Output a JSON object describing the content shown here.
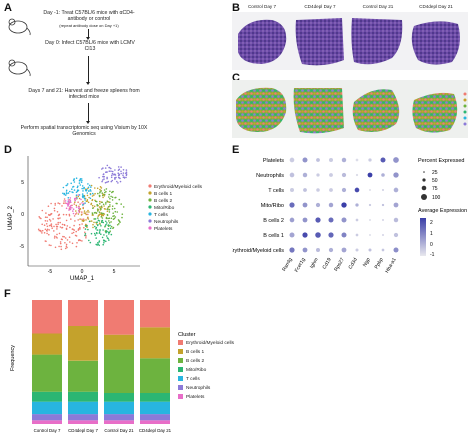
{
  "panels": {
    "A": {
      "letter": "A",
      "steps": [
        "Day -1: Treat C57BL/6 mice with αCD4-antibody or control",
        "(repeat antibody dose on Day +1)",
        "Day 0: Infect C57BL/6 mice with LCMV Cl13",
        "Days 7 and 21: Harvest and freeze spleens from infected mice",
        "Perform spatial transcriptomic seq using Visium by 10X Genomics"
      ]
    },
    "B": {
      "letter": "B",
      "titles": [
        "Control Day 7",
        "CD4depl Day 7",
        "Control Day 21",
        "CD4depl Day 21"
      ]
    },
    "C": {
      "letter": "C"
    },
    "D": {
      "letter": "D",
      "xlabel": "UMAP_1",
      "ylabel": "UMAP_2",
      "xticks": [
        "-5",
        "0",
        "5"
      ],
      "yticks": [
        "5",
        "0",
        "-5"
      ],
      "legend": [
        "Erythroid/Myeloid cells",
        "B cells 1",
        "B cells 2",
        "Mito/Ribo",
        "T cells",
        "Neutrophils",
        "Platelets"
      ]
    },
    "E": {
      "letter": "E",
      "size_legend_title": "Percent Expressed",
      "size_legend_values": [
        "25",
        "50",
        "75",
        "100"
      ],
      "color_legend_title": "Average Expression",
      "color_legend_ticks": [
        "2",
        "1",
        "0",
        "-1"
      ]
    },
    "F": {
      "letter": "F",
      "ylabel": "Frequency",
      "legend_title": "Cluster"
    }
  },
  "colors": {
    "erythroid": "#f07b72",
    "bcells1": "#c4a22c",
    "bcells2": "#6db33f",
    "mito": "#2bb673",
    "tcells": "#28b5e0",
    "neutrophils": "#8c7ad8",
    "platelets": "#e86ec8",
    "tissue_he": "#5a3f9a"
  },
  "chart_data": [
    {
      "type": "scatter",
      "name_ref": "D",
      "xlabel": "UMAP_1",
      "ylabel": "UMAP_2",
      "xticks": [
        -5,
        0,
        5
      ],
      "yticks": [
        -5,
        0,
        5
      ]
    },
    {
      "type": "scatter",
      "name_ref": "E",
      "genes": [
        "Rsrnlg",
        "Fcer1g",
        "Ighm",
        "Cd19",
        "Rps27",
        "Cd3d",
        "Ngp",
        "Ppbp",
        "Hba-a1"
      ],
      "clusters": [
        "Platelets",
        "Neutrophils",
        "T cells",
        "Mito/Ribo",
        "B cells 2",
        "B cells 1",
        "Erythroid/Myeloid cells"
      ],
      "size_scale": [
        25,
        50,
        75,
        100
      ],
      "color_range": [
        -1,
        2
      ],
      "points": [
        [
          [
            60,
            -0.5
          ],
          [
            70,
            0.5
          ],
          [
            40,
            -0.3
          ],
          [
            45,
            -0.5
          ],
          [
            55,
            0
          ],
          [
            20,
            -0.8
          ],
          [
            30,
            -0.5
          ],
          [
            70,
            1.5
          ],
          [
            90,
            0.5
          ]
        ],
        [
          [
            60,
            -0.3
          ],
          [
            55,
            0
          ],
          [
            30,
            -0.5
          ],
          [
            40,
            -0.5
          ],
          [
            50,
            -0.2
          ],
          [
            15,
            -0.8
          ],
          [
            65,
            2
          ],
          [
            35,
            0
          ],
          [
            80,
            0.5
          ]
        ],
        [
          [
            45,
            -0.5
          ],
          [
            40,
            -0.3
          ],
          [
            35,
            -0.5
          ],
          [
            40,
            -0.5
          ],
          [
            50,
            0
          ],
          [
            60,
            1.8
          ],
          [
            10,
            -0.8
          ],
          [
            10,
            -0.5
          ],
          [
            60,
            0
          ]
        ],
        [
          [
            75,
            1.2
          ],
          [
            65,
            0.5
          ],
          [
            50,
            0
          ],
          [
            55,
            0.2
          ],
          [
            80,
            2
          ],
          [
            30,
            0
          ],
          [
            15,
            -0.5
          ],
          [
            15,
            -0.3
          ],
          [
            65,
            0.2
          ]
        ],
        [
          [
            60,
            0.3
          ],
          [
            65,
            0.5
          ],
          [
            75,
            1.5
          ],
          [
            70,
            1.2
          ],
          [
            70,
            0.5
          ],
          [
            20,
            -0.5
          ],
          [
            10,
            -0.8
          ],
          [
            10,
            -0.6
          ],
          [
            55,
            -0.2
          ]
        ],
        [
          [
            70,
            0.2
          ],
          [
            75,
            1.8
          ],
          [
            85,
            1.5
          ],
          [
            75,
            1.3
          ],
          [
            70,
            0.8
          ],
          [
            20,
            -0.5
          ],
          [
            10,
            -0.8
          ],
          [
            10,
            -0.6
          ],
          [
            50,
            -0.3
          ]
        ],
        [
          [
            75,
            1
          ],
          [
            65,
            0.5
          ],
          [
            45,
            -0.2
          ],
          [
            50,
            0
          ],
          [
            65,
            0.2
          ],
          [
            25,
            -0.5
          ],
          [
            25,
            -0.3
          ],
          [
            20,
            -0.4
          ],
          [
            70,
            0.6
          ]
        ]
      ]
    },
    {
      "type": "bar",
      "name_ref": "F",
      "ylabel": "Frequency",
      "categories": [
        "Control Day 7",
        "CD4depl Day 7",
        "Control Day 21",
        "CD4depl Day 21"
      ],
      "stacked": true,
      "series": [
        {
          "name": "Platelets",
          "values": [
            0.03,
            0.03,
            0.03,
            0.03
          ]
        },
        {
          "name": "Neutrophils",
          "values": [
            0.05,
            0.05,
            0.05,
            0.05
          ]
        },
        {
          "name": "T cells",
          "values": [
            0.1,
            0.1,
            0.1,
            0.1
          ]
        },
        {
          "name": "Mito/Ribo",
          "values": [
            0.08,
            0.08,
            0.07,
            0.07
          ]
        },
        {
          "name": "B cells 2",
          "values": [
            0.3,
            0.25,
            0.35,
            0.28
          ]
        },
        {
          "name": "B cells 1",
          "values": [
            0.17,
            0.28,
            0.12,
            0.25
          ]
        },
        {
          "name": "Erythroid/Myeloid cells",
          "values": [
            0.27,
            0.21,
            0.28,
            0.22
          ]
        }
      ],
      "ylim": [
        0,
        1
      ],
      "legend": [
        "Erythroid/Myeloid cells",
        "B cells 1",
        "B cells 2",
        "Mito/Ribo",
        "T cells",
        "Neutrophils",
        "Platelets"
      ]
    }
  ]
}
